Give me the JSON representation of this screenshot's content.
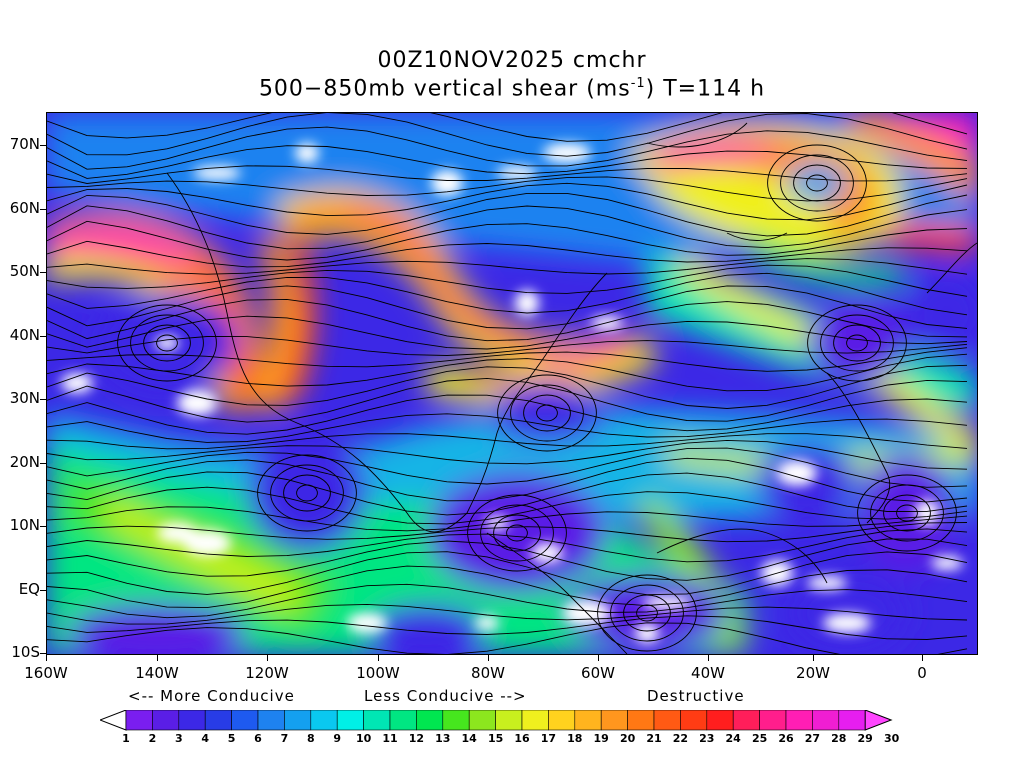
{
  "title": {
    "line1": "00Z10NOV2025 cmchr",
    "line2_pre": "500−850mb vertical shear (ms",
    "line2_sup": "-1",
    "line2_post": ") T=114 h"
  },
  "axes": {
    "y_labels": [
      "70N",
      "60N",
      "50N",
      "40N",
      "30N",
      "20N",
      "10N",
      "EQ",
      "10S"
    ],
    "x_labels": [
      "160W",
      "140W",
      "120W",
      "100W",
      "80W",
      "60W",
      "40W",
      "20W",
      "0"
    ]
  },
  "notes": {
    "more": "<-- More Conducive",
    "less": "Less Conducive -->",
    "destructive": "Destructive"
  },
  "colorbar": {
    "labels": [
      "1",
      "2",
      "3",
      "4",
      "5",
      "6",
      "7",
      "8",
      "9",
      "10",
      "11",
      "12",
      "13",
      "14",
      "15",
      "16",
      "17",
      "18",
      "19",
      "20",
      "21",
      "22",
      "23",
      "24",
      "25",
      "26",
      "27",
      "28",
      "29",
      "30"
    ],
    "colors": [
      "#ffffff",
      "#7a1ef0",
      "#5a1ee6",
      "#3c28e6",
      "#283ce6",
      "#1e5af0",
      "#1e82f0",
      "#14a0f0",
      "#0ac8f0",
      "#00f0e6",
      "#00e6b4",
      "#00e682",
      "#00e650",
      "#46e61e",
      "#8ce61e",
      "#c8f01e",
      "#f0f01e",
      "#ffd21e",
      "#ffb41e",
      "#ff961e",
      "#ff7814",
      "#ff5a14",
      "#ff3c14",
      "#ff1e1e",
      "#ff1e5a",
      "#ff1e8c",
      "#ff1eb4",
      "#f01ed2",
      "#e61ef0",
      "#ff46ff"
    ]
  }
}
